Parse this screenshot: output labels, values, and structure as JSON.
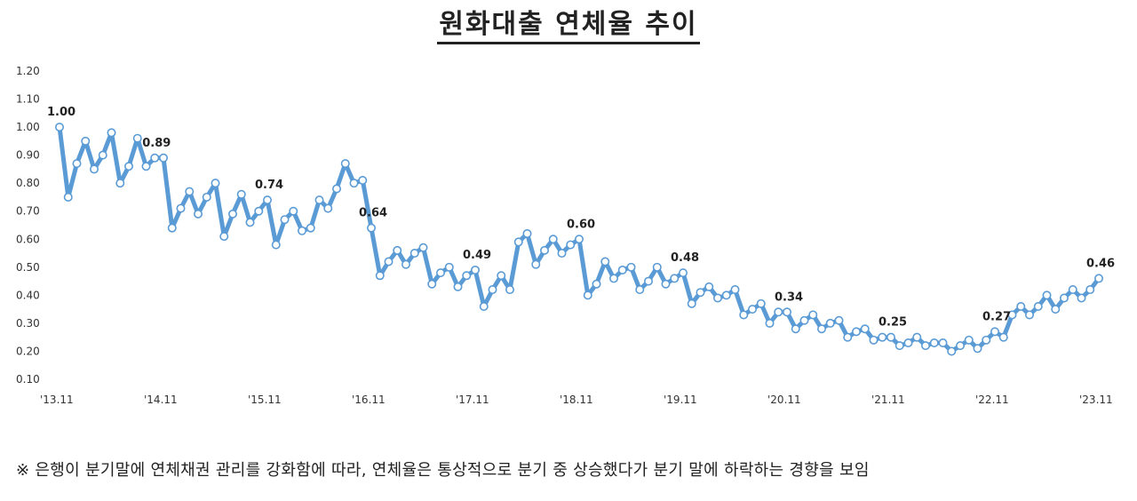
{
  "chart_data": {
    "type": "line",
    "title": "원화대출 연체율 추이",
    "xlabel": "",
    "ylabel": "",
    "ylim": [
      0.1,
      1.2
    ],
    "yticks": [
      "1.20",
      "1.10",
      "1.00",
      "0.90",
      "0.80",
      "0.70",
      "0.60",
      "0.50",
      "0.40",
      "0.30",
      "0.20",
      "0.10"
    ],
    "xtick_labels": [
      "'13.11",
      "'14.11",
      "'15.11",
      "'16.11",
      "'17.11",
      "'18.11",
      "'19.11",
      "'20.11",
      "'21.11",
      "'22.11",
      "'23.11"
    ],
    "grid": false,
    "legend": "none",
    "line_color": "#5b9bd5",
    "values": [
      1.0,
      0.75,
      0.87,
      0.95,
      0.85,
      0.9,
      0.98,
      0.8,
      0.86,
      0.96,
      0.86,
      0.89,
      0.89,
      0.64,
      0.71,
      0.77,
      0.69,
      0.75,
      0.8,
      0.61,
      0.69,
      0.76,
      0.66,
      0.7,
      0.74,
      0.58,
      0.67,
      0.7,
      0.63,
      0.64,
      0.74,
      0.71,
      0.78,
      0.87,
      0.8,
      0.81,
      0.64,
      0.47,
      0.52,
      0.56,
      0.51,
      0.55,
      0.57,
      0.44,
      0.48,
      0.5,
      0.43,
      0.47,
      0.49,
      0.36,
      0.42,
      0.47,
      0.42,
      0.59,
      0.62,
      0.51,
      0.56,
      0.6,
      0.55,
      0.58,
      0.6,
      0.4,
      0.44,
      0.52,
      0.46,
      0.49,
      0.5,
      0.42,
      0.45,
      0.5,
      0.44,
      0.46,
      0.48,
      0.37,
      0.41,
      0.43,
      0.39,
      0.4,
      0.42,
      0.33,
      0.35,
      0.37,
      0.3,
      0.34,
      0.34,
      0.28,
      0.31,
      0.33,
      0.28,
      0.3,
      0.31,
      0.25,
      0.27,
      0.28,
      0.24,
      0.25,
      0.25,
      0.22,
      0.23,
      0.25,
      0.22,
      0.23,
      0.23,
      0.2,
      0.22,
      0.24,
      0.21,
      0.24,
      0.27,
      0.25,
      0.33,
      0.36,
      0.33,
      0.36,
      0.4,
      0.35,
      0.39,
      0.42,
      0.39,
      0.42,
      0.46
    ],
    "data_labels": [
      {
        "index": 0,
        "text": "1.00"
      },
      {
        "index": 11,
        "text": "0.89"
      },
      {
        "index": 24,
        "text": "0.74"
      },
      {
        "index": 36,
        "text": "0.64"
      },
      {
        "index": 48,
        "text": "0.49"
      },
      {
        "index": 60,
        "text": "0.60"
      },
      {
        "index": 72,
        "text": "0.48"
      },
      {
        "index": 84,
        "text": "0.34"
      },
      {
        "index": 96,
        "text": "0.25"
      },
      {
        "index": 108,
        "text": "0.27"
      },
      {
        "index": 120,
        "text": "0.46"
      }
    ]
  },
  "footnote": "※ 은행이 분기말에 연체채권 관리를 강화함에 따라, 연체율은 통상적으로 분기 중 상승했다가 분기 말에 하락하는 경향을 보임"
}
